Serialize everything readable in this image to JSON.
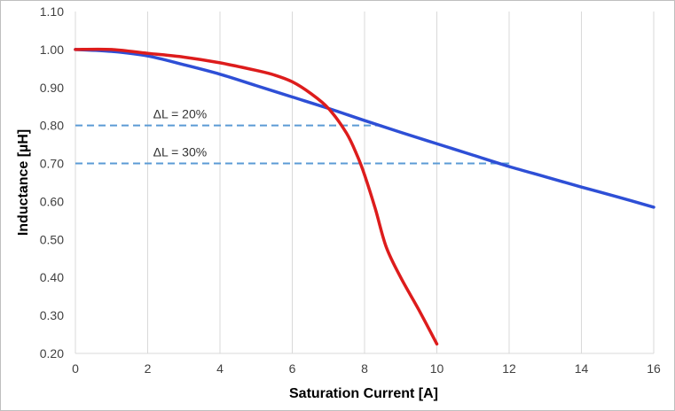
{
  "chart_data": {
    "type": "line",
    "title": "",
    "xlabel": "Saturation Current [A]",
    "ylabel": "Inductance [µH]",
    "xlim": [
      0,
      16
    ],
    "ylim": [
      0.2,
      1.1
    ],
    "x_ticks": [
      "0",
      "2",
      "4",
      "6",
      "8",
      "10",
      "12",
      "14",
      "16"
    ],
    "y_ticks": [
      "0.20",
      "0.30",
      "0.40",
      "0.50",
      "0.60",
      "0.70",
      "0.80",
      "0.90",
      "1.00",
      "1.10"
    ],
    "grid": "vertical",
    "legend": "none",
    "series": [
      {
        "color": "#2e4fd6",
        "x": [
          0,
          1,
          2,
          3,
          4,
          5,
          6,
          7,
          8,
          9,
          10,
          11,
          12,
          13,
          14,
          15,
          16
        ],
        "y": [
          1.0,
          0.995,
          0.983,
          0.96,
          0.935,
          0.905,
          0.875,
          0.845,
          0.813,
          0.782,
          0.752,
          0.722,
          0.692,
          0.665,
          0.638,
          0.612,
          0.585
        ]
      },
      {
        "color": "#dd1c1c",
        "x": [
          0,
          1,
          2,
          3,
          4,
          5,
          5.5,
          6,
          6.5,
          7,
          7.5,
          7.8,
          8,
          8.3,
          8.6,
          9,
          9.5,
          10
        ],
        "y": [
          1.0,
          1.0,
          0.99,
          0.98,
          0.965,
          0.945,
          0.933,
          0.915,
          0.885,
          0.845,
          0.78,
          0.72,
          0.67,
          0.58,
          0.48,
          0.4,
          0.315,
          0.225
        ]
      }
    ],
    "reference_lines": [
      {
        "label": "ΔL = 20%",
        "y": 0.8,
        "x_start": 0,
        "x_end": 8.5,
        "color": "#5b9bd5"
      },
      {
        "label": "ΔL = 30%",
        "y": 0.7,
        "x_start": 0,
        "x_end": 12.0,
        "color": "#5b9bd5"
      }
    ]
  }
}
